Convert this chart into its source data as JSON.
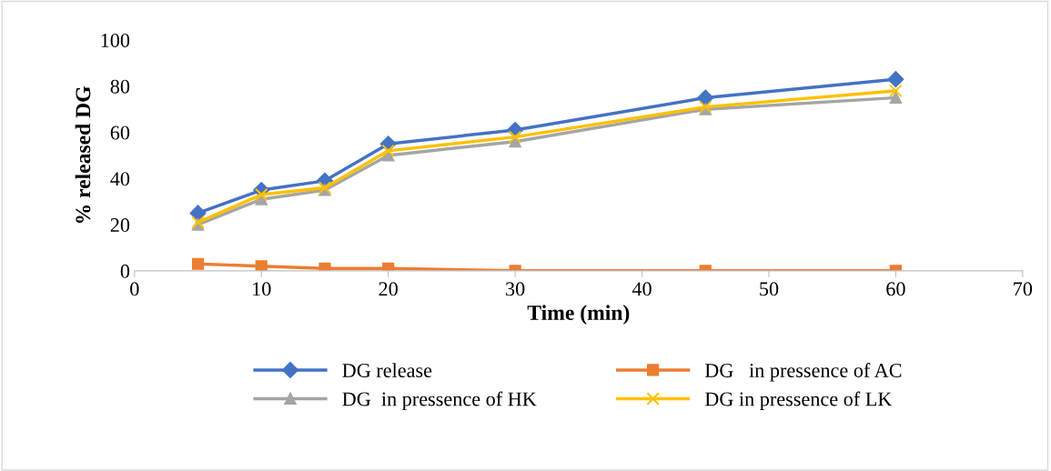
{
  "chart_data": {
    "type": "line",
    "xlabel": "Time (min)",
    "ylabel": "% released DG",
    "x": [
      5,
      10,
      15,
      20,
      30,
      45,
      60
    ],
    "series": [
      {
        "name": "DG release",
        "color": "#4472c4",
        "marker": "diamond",
        "values": [
          25,
          35,
          39,
          55,
          61,
          75,
          83
        ]
      },
      {
        "name": "DG   in pressence of AC",
        "color": "#ed7d31",
        "marker": "square",
        "values": [
          3,
          2,
          1,
          1,
          0,
          0,
          0
        ]
      },
      {
        "name": "DG  in pressence of HK",
        "color": "#a5a5a5",
        "marker": "triangle",
        "values": [
          20,
          31,
          35,
          50,
          56,
          70,
          75
        ]
      },
      {
        "name": "DG in pressence of LK",
        "color": "#ffc000",
        "marker": "cross",
        "values": [
          21,
          33,
          36,
          52,
          58,
          71,
          78
        ]
      }
    ],
    "xlim": [
      0,
      70
    ],
    "xticks": [
      0,
      10,
      20,
      30,
      40,
      50,
      60,
      70
    ],
    "ylim": [
      0,
      100
    ],
    "yticks": [
      0,
      20,
      40,
      60,
      80,
      100
    ],
    "grid": false,
    "legend": "bottom"
  }
}
